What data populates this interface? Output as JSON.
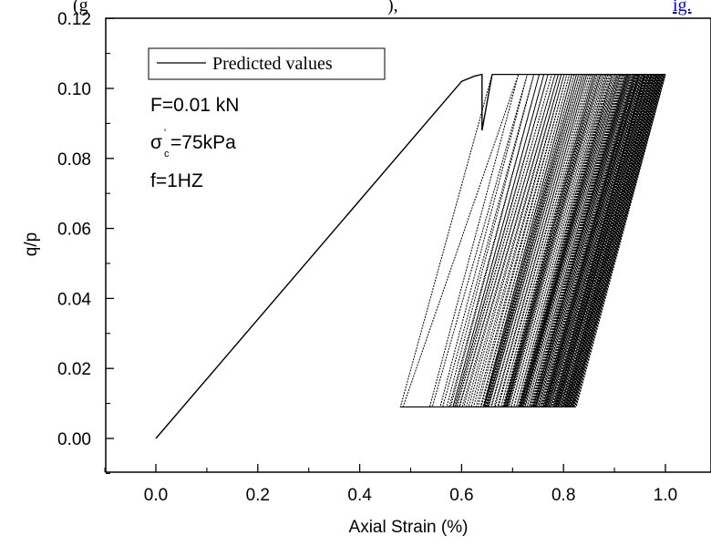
{
  "caption_fragment": {
    "left": "(g",
    "middle": "),",
    "link": "ig."
  },
  "chart_data": {
    "type": "line",
    "xlabel": "Axial Strain (%)",
    "ylabel": "q/p",
    "xlim": [
      -0.1,
      1.05
    ],
    "ylim": [
      -0.01,
      0.12
    ],
    "x_ticks": [
      "0.0",
      "0.2",
      "0.4",
      "0.6",
      "0.8",
      "1.0"
    ],
    "y_ticks": [
      "0.00",
      "0.02",
      "0.04",
      "0.06",
      "0.08",
      "0.10",
      "0.12"
    ],
    "grid": false,
    "legend_position": "top-left",
    "line_color": "#000000",
    "series": [
      {
        "name": "Predicted values",
        "initial_loading": [
          [
            0.0,
            0.0
          ],
          [
            0.6,
            0.102
          ],
          [
            0.625,
            0.1035
          ],
          [
            0.64,
            0.104
          ],
          [
            0.64,
            0.088
          ],
          [
            0.66,
            0.104
          ]
        ],
        "cycles": {
          "count": 90,
          "q_p_min": 0.009,
          "q_p_max": 0.104,
          "bottom_strain_start": 0.48,
          "bottom_strain_end": 0.82,
          "top_strain_start": 0.66,
          "top_strain_end": 1.0
        }
      }
    ],
    "annotations": {
      "load": "F=0.01 kN",
      "stress_symbol": "σ",
      "stress_sub": "c",
      "stress_sup": "'",
      "stress_value": "=75kPa",
      "frequency": "f=1HZ"
    }
  }
}
